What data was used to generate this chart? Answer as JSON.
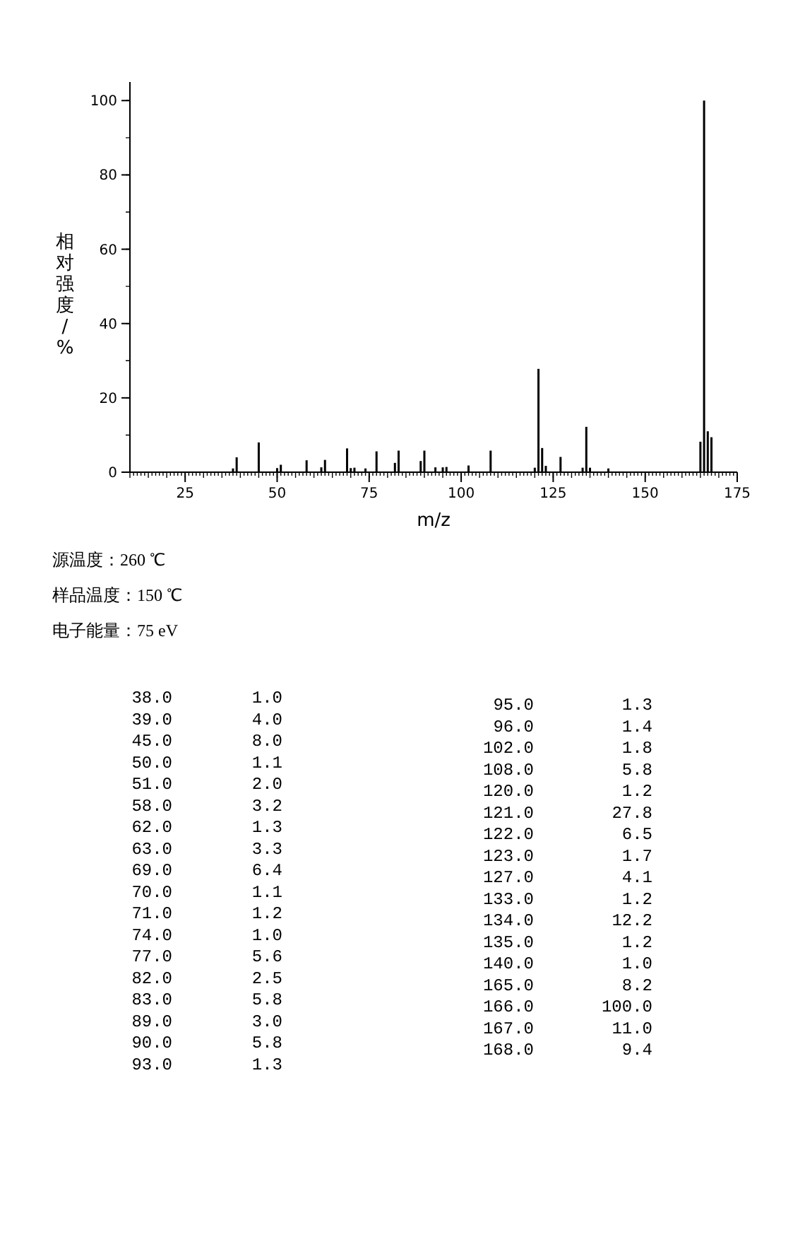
{
  "chart_data": [
    {
      "type": "bar",
      "xlabel": "m/z",
      "ylabel": "相对强度/%",
      "color": "#000000",
      "x": [
        38,
        39,
        45,
        50,
        51,
        58,
        62,
        63,
        69,
        70,
        71,
        74,
        77,
        82,
        83,
        89,
        90,
        93,
        95,
        96,
        102,
        108,
        120,
        121,
        122,
        123,
        127,
        133,
        134,
        135,
        140,
        165,
        166,
        167,
        168
      ],
      "values": [
        1.0,
        4.0,
        8.0,
        1.1,
        2.0,
        3.2,
        1.3,
        3.3,
        6.4,
        1.1,
        1.2,
        1.0,
        5.6,
        2.5,
        5.8,
        3.0,
        5.8,
        1.3,
        1.3,
        1.4,
        1.8,
        5.8,
        1.2,
        27.8,
        6.5,
        1.7,
        4.1,
        1.2,
        12.2,
        1.2,
        1.0,
        8.2,
        100.0,
        11.0,
        9.4
      ],
      "xlim": [
        10,
        175
      ],
      "ylim": [
        0,
        105
      ],
      "xticks": [
        25,
        50,
        75,
        100,
        125,
        150,
        175
      ],
      "yticks": [
        0,
        20,
        40,
        60,
        80,
        100
      ],
      "annotations": [
        "源温度：260 ℃",
        "样品温度：150 ℃",
        "电子能量：75 eV"
      ]
    },
    {
      "type": "other",
      "annotations": [
        "38.0",
        "1.0",
        "39.0",
        "4.0",
        "45.0",
        "8.0",
        "50.0",
        "1.1",
        "51.0",
        "2.0",
        "58.0",
        "3.2",
        "62.0",
        "1.3",
        "63.0",
        "3.3",
        "69.0",
        "6.4",
        "70.0",
        "1.1",
        "71.0",
        "1.2",
        "74.0",
        "1.0",
        "77.0",
        "5.6",
        "82.0",
        "2.5",
        "83.0",
        "5.8",
        "89.0",
        "3.0",
        "90.0",
        "5.8",
        "93.0",
        "1.3",
        "95.0",
        "1.3",
        "96.0",
        "1.4",
        "102.0",
        "1.8",
        "108.0",
        "5.8",
        "120.0",
        "1.2",
        "121.0",
        "27.8",
        "122.0",
        "6.5",
        "123.0",
        "1.7",
        "127.0",
        "4.1",
        "133.0",
        "1.2",
        "134.0",
        "12.2",
        "135.0",
        "1.2",
        "140.0",
        "1.0",
        "165.0",
        "8.2",
        "166.0",
        "100.0",
        "167.0",
        "11.0",
        "168.0",
        "9.4"
      ]
    }
  ]
}
